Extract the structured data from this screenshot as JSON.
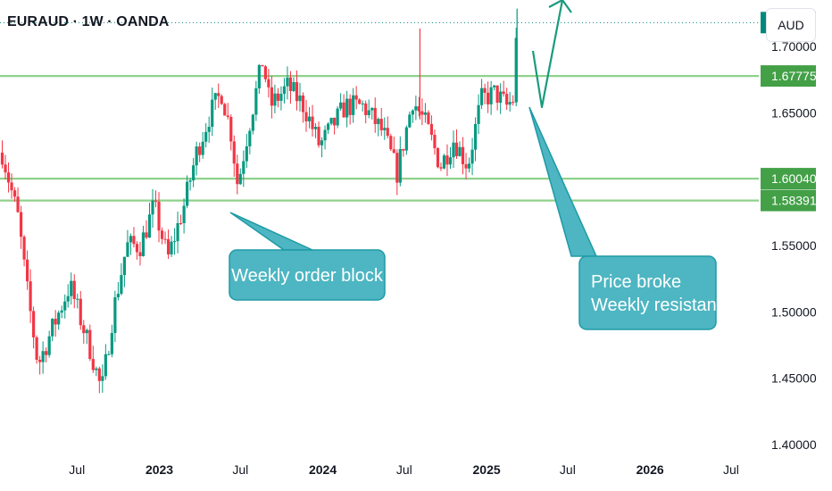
{
  "header": {
    "title": "EURAUD · 1W · OANDA"
  },
  "currency_button": {
    "label": "AUD"
  },
  "colors": {
    "bull": "#089981",
    "bear": "#f23645",
    "level_line": "#8fd18c",
    "level_tag": "#43a047",
    "current_tag": "#00897b",
    "callout": "#4db6c2",
    "callout_border": "#1e9aa6",
    "arrow": "#1a9b7d"
  },
  "chart_data": {
    "type": "candlestick",
    "title": "EURAUD · 1W · OANDA",
    "y_axis_ticks": [
      "1.40000",
      "1.45000",
      "1.50000",
      "1.55000",
      "1.65000",
      "1.70000"
    ],
    "ylim": [
      1.4,
      1.735
    ],
    "x_axis_ticks": [
      {
        "label": "Jul",
        "date": "2022-07",
        "bold": false
      },
      {
        "label": "2023",
        "date": "2023-01",
        "bold": true
      },
      {
        "label": "Jul",
        "date": "2023-07",
        "bold": false
      },
      {
        "label": "2024",
        "date": "2024-01",
        "bold": true
      },
      {
        "label": "Jul",
        "date": "2024-07",
        "bold": false
      },
      {
        "label": "2025",
        "date": "2025-01",
        "bold": true
      },
      {
        "label": "Jul",
        "date": "2025-07",
        "bold": false
      },
      {
        "label": "2026",
        "date": "2026-01",
        "bold": true
      },
      {
        "label": "Jul",
        "date": "2026-07",
        "bold": false
      }
    ],
    "xlim": [
      "2022-01-10",
      "2026-09-01"
    ],
    "current_price": "1.71797",
    "levels": [
      {
        "value": 1.67775,
        "label": "1.67775"
      },
      {
        "value": 1.6004,
        "label": "1.60040"
      },
      {
        "value": 1.58391,
        "label": "1.58391"
      }
    ],
    "series_keypoints": [
      {
        "date": "2022-01-15",
        "close": 1.62
      },
      {
        "date": "2022-02-20",
        "close": 1.57
      },
      {
        "date": "2022-03-10",
        "close": 1.52
      },
      {
        "date": "2022-04-05",
        "close": 1.46
      },
      {
        "date": "2022-05-10",
        "close": 1.49
      },
      {
        "date": "2022-06-15",
        "close": 1.52
      },
      {
        "date": "2022-08-01",
        "close": 1.47
      },
      {
        "date": "2022-08-25",
        "close": 1.44
      },
      {
        "date": "2022-09-20",
        "close": 1.5
      },
      {
        "date": "2022-10-20",
        "close": 1.55
      },
      {
        "date": "2022-11-20",
        "close": 1.55
      },
      {
        "date": "2022-12-20",
        "close": 1.58
      },
      {
        "date": "2023-01-20",
        "close": 1.54
      },
      {
        "date": "2023-02-25",
        "close": 1.58
      },
      {
        "date": "2023-03-25",
        "close": 1.62
      },
      {
        "date": "2023-04-25",
        "close": 1.65
      },
      {
        "date": "2023-05-20",
        "close": 1.665
      },
      {
        "date": "2023-06-10",
        "close": 1.635
      },
      {
        "date": "2023-06-25",
        "close": 1.595
      },
      {
        "date": "2023-07-20",
        "close": 1.64
      },
      {
        "date": "2023-08-20",
        "close": 1.69
      },
      {
        "date": "2023-09-05",
        "close": 1.655
      },
      {
        "date": "2023-10-15",
        "close": 1.67
      },
      {
        "date": "2023-11-20",
        "close": 1.655
      },
      {
        "date": "2023-12-25",
        "close": 1.625
      },
      {
        "date": "2024-02-20",
        "close": 1.655
      },
      {
        "date": "2024-04-01",
        "close": 1.655
      },
      {
        "date": "2024-05-15",
        "close": 1.635
      },
      {
        "date": "2024-06-15",
        "close": 1.605
      },
      {
        "date": "2024-07-20",
        "close": 1.66
      },
      {
        "date": "2024-08-20",
        "close": 1.64
      },
      {
        "date": "2024-09-20",
        "close": 1.61
      },
      {
        "date": "2024-10-20",
        "close": 1.63
      },
      {
        "date": "2024-11-20",
        "close": 1.61
      },
      {
        "date": "2024-12-20",
        "close": 1.66
      },
      {
        "date": "2025-01-20",
        "close": 1.665
      },
      {
        "date": "2025-02-15",
        "close": 1.655
      },
      {
        "date": "2025-03-01",
        "close": 1.66
      },
      {
        "date": "2025-03-10",
        "close": 1.715
      }
    ],
    "annotations": [
      {
        "text": "Weekly order block",
        "lines": [
          "Weekly order block"
        ]
      },
      {
        "text": "Price broke Weekly resistant",
        "lines": [
          "Price broke",
          "Weekly resistant"
        ]
      }
    ]
  }
}
